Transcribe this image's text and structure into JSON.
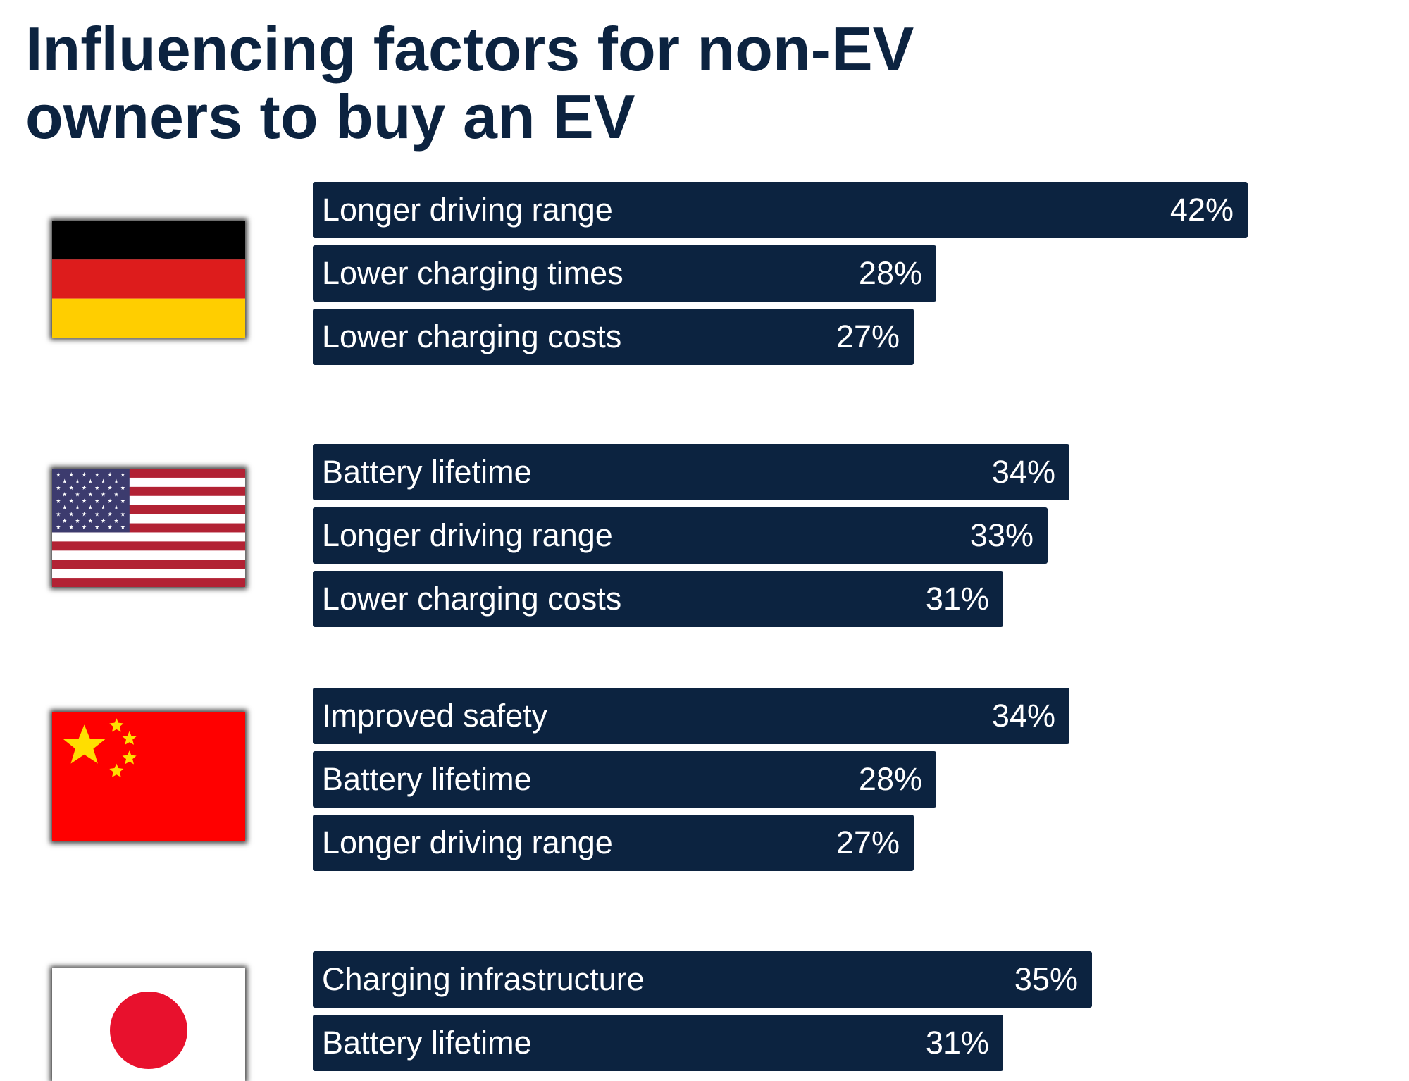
{
  "title": "Influencing factors for non-EV owners to buy an EV",
  "colors": {
    "bar": "#0c2340",
    "text": "#ffffff",
    "title": "#0c2340"
  },
  "chart_data": {
    "type": "bar",
    "orientation": "horizontal",
    "title": "Influencing factors for non-EV owners to buy an EV",
    "unit": "%",
    "groups": [
      {
        "flag_icon": "germany-flag-icon",
        "bars": [
          {
            "label": "Longer driving range",
            "value": 42,
            "value_label": "42%"
          },
          {
            "label": "Lower charging times",
            "value": 28,
            "value_label": "28%"
          },
          {
            "label": "Lower charging costs",
            "value": 27,
            "value_label": "27%"
          }
        ]
      },
      {
        "flag_icon": "usa-flag-icon",
        "bars": [
          {
            "label": "Battery lifetime",
            "value": 34,
            "value_label": "34%"
          },
          {
            "label": "Longer driving range",
            "value": 33,
            "value_label": "33%"
          },
          {
            "label": "Lower charging costs",
            "value": 31,
            "value_label": "31%"
          }
        ]
      },
      {
        "flag_icon": "china-flag-icon",
        "bars": [
          {
            "label": "Improved safety",
            "value": 34,
            "value_label": "34%"
          },
          {
            "label": "Battery lifetime",
            "value": 28,
            "value_label": "28%"
          },
          {
            "label": "Longer driving range",
            "value": 27,
            "value_label": "27%"
          }
        ]
      },
      {
        "flag_icon": "japan-flag-icon",
        "bars": [
          {
            "label": "Charging infrastructure",
            "value": 35,
            "value_label": "35%"
          },
          {
            "label": "Battery lifetime",
            "value": 31,
            "value_label": "31%"
          }
        ]
      }
    ]
  }
}
